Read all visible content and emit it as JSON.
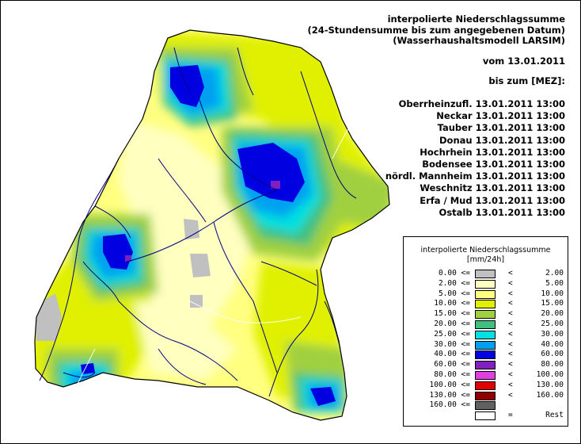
{
  "header": {
    "title_lines": [
      "interpolierte Niederschlagssumme",
      "(24-Stundensumme bis zum angegebenen Datum)",
      "(Wasserhaushaltsmodell LARSIM)"
    ],
    "date_line": "vom 13.01.2011",
    "until_line": "bis zum [MEZ]:"
  },
  "regions": [
    {
      "name": "Oberrheinzufl.",
      "datetime": "13.01.2011 13:00"
    },
    {
      "name": "Neckar",
      "datetime": "13.01.2011 13:00"
    },
    {
      "name": "Tauber",
      "datetime": "13.01.2011 13:00"
    },
    {
      "name": "Donau",
      "datetime": "13.01.2011 13:00"
    },
    {
      "name": "Hochrhein",
      "datetime": "13.01.2011 13:00"
    },
    {
      "name": "Bodensee",
      "datetime": "13.01.2011 13:00"
    },
    {
      "name": "nördl. Mannheim",
      "datetime": "13.01.2011 13:00"
    },
    {
      "name": "Weschnitz",
      "datetime": "13.01.2011 13:00"
    },
    {
      "name": "Erfa / Mud",
      "datetime": "13.01.2011 13:00"
    },
    {
      "name": "Ostalb",
      "datetime": "13.01.2011 13:00"
    }
  ],
  "legend": {
    "title": "interpolierte Niederschlagssumme",
    "unit": "[mm/24h]",
    "classes": [
      {
        "lo": "0.00 <=",
        "op": "<",
        "hi": "2.00",
        "color": "#c0c0c0"
      },
      {
        "lo": "2.00 <=",
        "op": "<",
        "hi": "5.00",
        "color": "#ffffc0"
      },
      {
        "lo": "5.00 <=",
        "op": "<",
        "hi": "10.00",
        "color": "#ffff80"
      },
      {
        "lo": "10.00 <=",
        "op": "<",
        "hi": "15.00",
        "color": "#e0f000"
      },
      {
        "lo": "15.00 <=",
        "op": "<",
        "hi": "20.00",
        "color": "#a0d040"
      },
      {
        "lo": "20.00 <=",
        "op": "<",
        "hi": "25.00",
        "color": "#40c080"
      },
      {
        "lo": "25.00 <=",
        "op": "<",
        "hi": "30.00",
        "color": "#00e0e0"
      },
      {
        "lo": "30.00 <=",
        "op": "<",
        "hi": "40.00",
        "color": "#00a0f0"
      },
      {
        "lo": "40.00 <=",
        "op": "<",
        "hi": "60.00",
        "color": "#0000e0"
      },
      {
        "lo": "60.00 <=",
        "op": "<",
        "hi": "80.00",
        "color": "#8020c0"
      },
      {
        "lo": "80.00 <=",
        "op": "<",
        "hi": "100.00",
        "color": "#e040e0"
      },
      {
        "lo": "100.00 <=",
        "op": "<",
        "hi": "130.00",
        "color": "#e00000"
      },
      {
        "lo": "130.00 <=",
        "op": "<",
        "hi": "160.00",
        "color": "#900000"
      },
      {
        "lo": "160.00 <=",
        "op": "",
        "hi": "",
        "color": "#606060"
      },
      {
        "lo": "",
        "op": "=",
        "hi": "Rest",
        "color": "#ffffff"
      }
    ]
  },
  "map_colors": {
    "gray": "#c0c0c0",
    "pale": "#ffffc0",
    "light_yellow": "#ffff80",
    "yellow": "#e0f000",
    "lime": "#a0d040",
    "green": "#40c080",
    "cyan": "#00e0e0",
    "blue": "#00a0f0",
    "dark_blue": "#0000e0",
    "purple": "#8020c0",
    "river": "#000080",
    "border": "#000000"
  }
}
